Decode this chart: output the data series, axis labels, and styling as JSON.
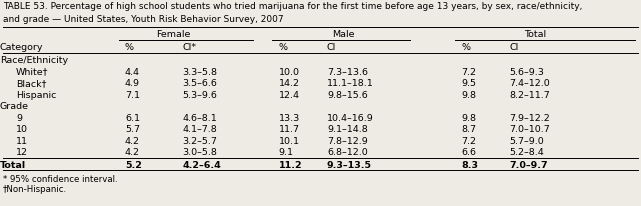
{
  "title1": "TABLE 53. Percentage of high school students who tried marijuana for the first time before age 13 years, by sex, race/ethnicity,",
  "title2": "and grade — United States, Youth Risk Behavior Survey, 2007",
  "bg_color": "#eeebe4",
  "font_family": "sans-serif",
  "fs_title": 6.5,
  "fs_body": 6.8,
  "fs_footnote": 6.2,
  "col_positions": {
    "cat": 0.0,
    "f_pct": 0.195,
    "f_ci": 0.285,
    "m_pct": 0.435,
    "m_ci": 0.51,
    "t_pct": 0.72,
    "t_ci": 0.795
  },
  "group_centers": {
    "Female": 0.27,
    "Male": 0.535,
    "Total": 0.835
  },
  "group_spans": {
    "Female": [
      0.185,
      0.395
    ],
    "Male": [
      0.425,
      0.64
    ],
    "Total": [
      0.71,
      0.99
    ]
  },
  "rows": [
    {
      "label": "Race/Ethnicity",
      "type": "section"
    },
    {
      "label": "White†",
      "f_pct": "4.4",
      "f_ci": "3.3–5.8",
      "m_pct": "10.0",
      "m_ci": "7.3–13.6",
      "t_pct": "7.2",
      "t_ci": "5.6–9.3",
      "bold": false,
      "type": "data",
      "indent": true
    },
    {
      "label": "Black†",
      "f_pct": "4.9",
      "f_ci": "3.5–6.6",
      "m_pct": "14.2",
      "m_ci": "11.1–18.1",
      "t_pct": "9.5",
      "t_ci": "7.4–12.0",
      "bold": false,
      "type": "data",
      "indent": true
    },
    {
      "label": "Hispanic",
      "f_pct": "7.1",
      "f_ci": "5.3–9.6",
      "m_pct": "12.4",
      "m_ci": "9.8–15.6",
      "t_pct": "9.8",
      "t_ci": "8.2–11.7",
      "bold": false,
      "type": "data",
      "indent": true
    },
    {
      "label": "Grade",
      "type": "section"
    },
    {
      "label": "9",
      "f_pct": "6.1",
      "f_ci": "4.6–8.1",
      "m_pct": "13.3",
      "m_ci": "10.4–16.9",
      "t_pct": "9.8",
      "t_ci": "7.9–12.2",
      "bold": false,
      "type": "data",
      "indent": true
    },
    {
      "label": "10",
      "f_pct": "5.7",
      "f_ci": "4.1–7.8",
      "m_pct": "11.7",
      "m_ci": "9.1–14.8",
      "t_pct": "8.7",
      "t_ci": "7.0–10.7",
      "bold": false,
      "type": "data",
      "indent": true
    },
    {
      "label": "11",
      "f_pct": "4.2",
      "f_ci": "3.2–5.7",
      "m_pct": "10.1",
      "m_ci": "7.8–12.9",
      "t_pct": "7.2",
      "t_ci": "5.7–9.0",
      "bold": false,
      "type": "data",
      "indent": true
    },
    {
      "label": "12",
      "f_pct": "4.2",
      "f_ci": "3.0–5.8",
      "m_pct": "9.1",
      "m_ci": "6.8–12.0",
      "t_pct": "6.6",
      "t_ci": "5.2–8.4",
      "bold": false,
      "type": "data",
      "indent": true
    },
    {
      "label": "Total",
      "f_pct": "5.2",
      "f_ci": "4.2–6.4",
      "m_pct": "11.2",
      "m_ci": "9.3–13.5",
      "t_pct": "8.3",
      "t_ci": "7.0–9.7",
      "bold": true,
      "type": "total",
      "indent": false
    }
  ],
  "footnotes": [
    "* 95% confidence interval.",
    "†Non-Hispanic."
  ]
}
